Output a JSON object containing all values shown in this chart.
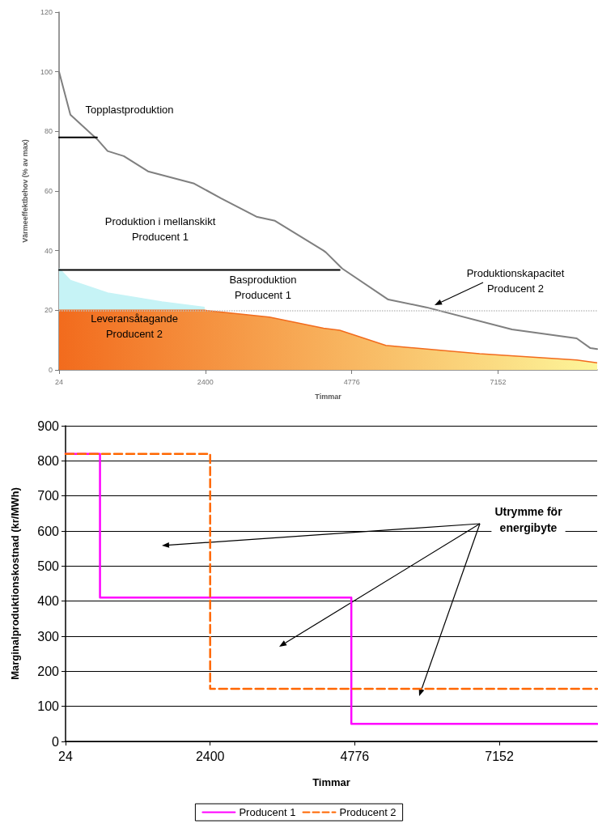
{
  "chart_data": [
    {
      "type": "area",
      "xlabel": "Timmar",
      "ylabel": "Värmeeffektbehov (% av max)",
      "xlim": [
        24,
        8760
      ],
      "xticks": [
        24,
        2400,
        4776,
        7152
      ],
      "ylim": [
        0,
        120
      ],
      "yticks": [
        0,
        20,
        40,
        60,
        80,
        100,
        120
      ],
      "grid": false,
      "legend": false,
      "stacked": true,
      "marker": "none",
      "series": [
        {
          "color": "#f26b1d",
          "x": [
            24,
            208,
            812,
            1692,
            2387,
            3438,
            4318,
            4580,
            5329,
            6852,
            8427,
            8760
          ],
          "values": [
            20,
            20,
            20,
            20,
            20,
            17.7,
            14,
            13.3,
            8.2,
            5.4,
            3.3,
            2.4
          ]
        },
        {
          "color": "#c6f3f6",
          "x": [
            24,
            208,
            812,
            1692,
            2387
          ],
          "values": [
            14,
            10,
            5.8,
            2.8,
            1
          ]
        },
        {
          "type": "line",
          "color": "#7f7f7f",
          "x": [
            24,
            208,
            641,
            812,
            1075,
            1468,
            2217,
            2650,
            3228,
            3530,
            4318,
            4357,
            4620,
            5368,
            5985,
            7377,
            8427,
            8650,
            8760
          ],
          "values": [
            100,
            85.6,
            77.4,
            73.4,
            71.7,
            66.6,
            62.5,
            57.6,
            51.4,
            50,
            40,
            39.4,
            34,
            23.6,
            21,
            13.6,
            10.6,
            7.3,
            7
          ]
        },
        {
          "type": "line",
          "color": "#000000",
          "x": [
            24,
            640
          ],
          "values": [
            78,
            78
          ]
        },
        {
          "type": "line",
          "color": "#000000",
          "x": [
            24,
            4580
          ],
          "values": [
            33.5,
            33.5
          ]
        }
      ],
      "ref_lines": [
        {
          "axis": "y",
          "value": 20,
          "color": "#c0c0c0",
          "line_style": "dotted"
        }
      ],
      "annotations": [
        "Topplastproduktion",
        "Produktion i mellanskikt\nProducent 1",
        "Basproduktion\nProducent 1",
        "Leveransåtagande\nProducent 2",
        "Produktionskapacitet\nProducent 2"
      ]
    },
    {
      "type": "step",
      "xlabel": "Timmar",
      "ylabel": "Marginalproduktionskostnad (kr/MWh)",
      "xlim": [
        24,
        8760
      ],
      "xticks": [
        24,
        2400,
        4776,
        7152
      ],
      "ylim": [
        0,
        900
      ],
      "yticks": [
        0,
        100,
        200,
        300,
        400,
        500,
        600,
        700,
        800,
        900
      ],
      "grid": "y",
      "legend": "bottom",
      "marker": "none",
      "series": [
        {
          "name": "Producent 1",
          "color": "#ff00ff",
          "line_style": "solid",
          "x": [
            24,
            590,
            4720,
            8760
          ],
          "values": [
            820,
            410,
            50,
            50
          ]
        },
        {
          "name": "Producent 2",
          "color": "#ff6600",
          "line_style": "dashed",
          "x": [
            24,
            2400,
            8760
          ],
          "values": [
            820,
            150,
            150
          ]
        }
      ],
      "annotations": [
        "Utrymme för\nenergibyte"
      ]
    }
  ]
}
